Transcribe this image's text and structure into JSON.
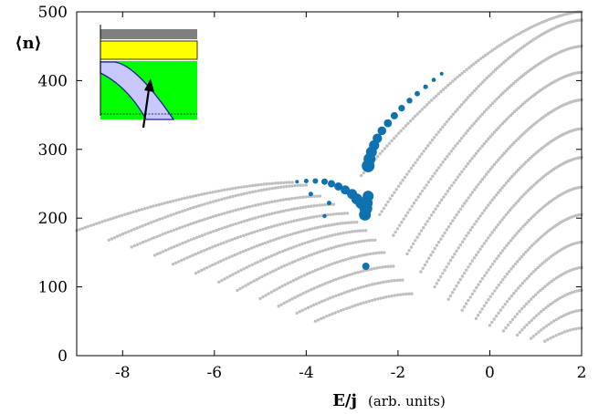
{
  "chart_data": {
    "type": "scatter",
    "title": "",
    "xlabel_main": "E/j",
    "xlabel_unit": "(arb. units)",
    "ylabel": "⟨n⟩",
    "xlim": [
      -9,
      2
    ],
    "ylim": [
      0,
      500
    ],
    "x_ticks": [
      -8,
      -6,
      -4,
      -2,
      0,
      2
    ],
    "y_ticks": [
      0,
      100,
      200,
      300,
      400,
      500
    ],
    "x_tick_labels": [
      "-8",
      "-6",
      "-4",
      "-2",
      "0",
      "2"
    ],
    "y_tick_labels": [
      "0",
      "100",
      "200",
      "300",
      "400",
      "500"
    ],
    "grid": false,
    "legend": "none",
    "colors": {
      "background_points": "#c0c0c0",
      "highlight_points": "#0e72b0"
    },
    "series": [
      {
        "role": "background",
        "branches": [
          {
            "x": [
              -9.0,
              -4.3
            ],
            "y": [
              182,
              252
            ]
          },
          {
            "x": [
              -8.3,
              -4.0
            ],
            "y": [
              168,
              248
            ]
          },
          {
            "x": [
              -7.8,
              -3.7
            ],
            "y": [
              158,
              232
            ]
          },
          {
            "x": [
              -7.3,
              -3.4
            ],
            "y": [
              146,
              220
            ]
          },
          {
            "x": [
              -6.9,
              -3.1
            ],
            "y": [
              133,
              207
            ]
          },
          {
            "x": [
              -6.4,
              -2.9
            ],
            "y": [
              120,
              194
            ]
          },
          {
            "x": [
              -5.9,
              -2.7
            ],
            "y": [
              107,
              182
            ]
          },
          {
            "x": [
              -5.5,
              -2.5
            ],
            "y": [
              95,
              168
            ]
          },
          {
            "x": [
              -5.0,
              -2.3
            ],
            "y": [
              83,
              150
            ]
          },
          {
            "x": [
              -4.6,
              -2.1
            ],
            "y": [
              72,
              130
            ]
          },
          {
            "x": [
              -4.2,
              -1.9
            ],
            "y": [
              62,
              110
            ]
          },
          {
            "x": [
              -3.8,
              -1.7
            ],
            "y": [
              50,
              90
            ]
          },
          {
            "x": [
              -2.8,
              2.0
            ],
            "y": [
              262,
              500
            ]
          },
          {
            "x": [
              -2.4,
              2.0
            ],
            "y": [
              205,
              488
            ]
          },
          {
            "x": [
              -2.1,
              2.0
            ],
            "y": [
              175,
              450
            ]
          },
          {
            "x": [
              -1.8,
              2.0
            ],
            "y": [
              148,
              412
            ]
          },
          {
            "x": [
              -1.5,
              2.0
            ],
            "y": [
              122,
              372
            ]
          },
          {
            "x": [
              -1.2,
              2.0
            ],
            "y": [
              100,
              330
            ]
          },
          {
            "x": [
              -0.9,
              2.0
            ],
            "y": [
              82,
              288
            ]
          },
          {
            "x": [
              -0.6,
              2.0
            ],
            "y": [
              66,
              245
            ]
          },
          {
            "x": [
              -0.3,
              2.0
            ],
            "y": [
              54,
              205
            ]
          },
          {
            "x": [
              0.0,
              2.0
            ],
            "y": [
              44,
              165
            ]
          },
          {
            "x": [
              0.3,
              2.0
            ],
            "y": [
              36,
              128
            ]
          },
          {
            "x": [
              0.6,
              2.0
            ],
            "y": [
              30,
              95
            ]
          },
          {
            "x": [
              0.9,
              2.0
            ],
            "y": [
              25,
              66
            ]
          },
          {
            "x": [
              1.2,
              2.0
            ],
            "y": [
              21,
              40
            ]
          }
        ]
      },
      {
        "role": "highlight",
        "points": [
          {
            "x": -4.2,
            "y": 253,
            "s": 2
          },
          {
            "x": -4.0,
            "y": 254,
            "s": 2.5
          },
          {
            "x": -3.8,
            "y": 254,
            "s": 3
          },
          {
            "x": -3.6,
            "y": 253,
            "s": 3.5
          },
          {
            "x": -3.45,
            "y": 250,
            "s": 4
          },
          {
            "x": -3.3,
            "y": 246,
            "s": 4.5
          },
          {
            "x": -3.15,
            "y": 241,
            "s": 5
          },
          {
            "x": -3.0,
            "y": 235,
            "s": 5.5
          },
          {
            "x": -2.9,
            "y": 228,
            "s": 6
          },
          {
            "x": -2.8,
            "y": 222,
            "s": 6.5
          },
          {
            "x": -2.7,
            "y": 214,
            "s": 7
          },
          {
            "x": -2.68,
            "y": 222,
            "s": 6.5
          },
          {
            "x": -2.65,
            "y": 232,
            "s": 6
          },
          {
            "x": -2.72,
            "y": 205,
            "s": 6.5
          },
          {
            "x": -3.9,
            "y": 235,
            "s": 2.5
          },
          {
            "x": -3.5,
            "y": 222,
            "s": 2.5
          },
          {
            "x": -3.6,
            "y": 203,
            "s": 2.2
          },
          {
            "x": -2.7,
            "y": 130,
            "s": 4
          },
          {
            "x": -2.65,
            "y": 276,
            "s": 7
          },
          {
            "x": -2.62,
            "y": 286,
            "s": 6.5
          },
          {
            "x": -2.58,
            "y": 296,
            "s": 6
          },
          {
            "x": -2.52,
            "y": 306,
            "s": 5.6
          },
          {
            "x": -2.45,
            "y": 316,
            "s": 5.2
          },
          {
            "x": -2.35,
            "y": 327,
            "s": 4.8
          },
          {
            "x": -2.22,
            "y": 338,
            "s": 4.4
          },
          {
            "x": -2.08,
            "y": 349,
            "s": 4
          },
          {
            "x": -1.92,
            "y": 360,
            "s": 3.6
          },
          {
            "x": -1.75,
            "y": 371,
            "s": 3.2
          },
          {
            "x": -1.58,
            "y": 381,
            "s": 2.9
          },
          {
            "x": -1.4,
            "y": 391,
            "s": 2.6
          },
          {
            "x": -1.22,
            "y": 401,
            "s": 2.3
          },
          {
            "x": -1.05,
            "y": 410,
            "s": 2
          }
        ]
      }
    ]
  }
}
